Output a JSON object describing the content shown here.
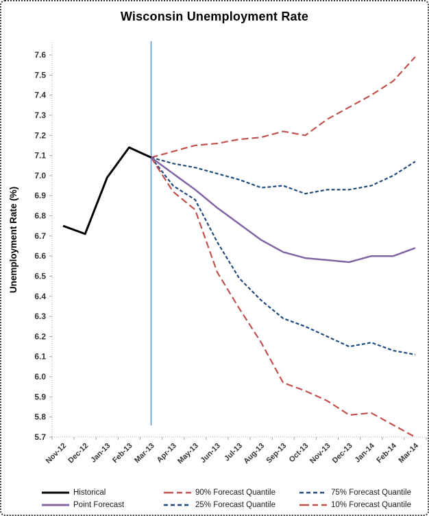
{
  "window": {
    "title": "Wisconsin Unemployment Rate"
  },
  "chart_data": {
    "type": "line",
    "title": "Wisconsin Unemployment Rate",
    "xlabel": "",
    "ylabel": "Unemployment Rate (%)",
    "ylim": [
      5.7,
      7.6
    ],
    "ytick_step": 0.1,
    "grid": false,
    "legend_position": "bottom",
    "categories": [
      "Nov-12",
      "Dec-12",
      "Jan-13",
      "Feb-13",
      "Mar-13",
      "Apr-13",
      "May-13",
      "Jun-13",
      "Jul-13",
      "Aug-13",
      "Sep-13",
      "Oct-13",
      "Nov-13",
      "Dec-13",
      "Jan-14",
      "Feb-14",
      "Mar-14"
    ],
    "forecast_start_line": {
      "category": "Mar-13",
      "color": "#5E93CE"
    },
    "series": [
      {
        "name": "90% Forecast Quantile",
        "color": "#C0504D",
        "style": "long-dash",
        "width": 2.2,
        "values": [
          null,
          null,
          null,
          null,
          7.09,
          7.12,
          7.15,
          7.16,
          7.18,
          7.19,
          7.22,
          7.2,
          7.28,
          7.34,
          7.4,
          7.47,
          7.59
        ]
      },
      {
        "name": "75% Forecast Quantile",
        "color": "#1F497D",
        "style": "dash",
        "width": 2.2,
        "values": [
          null,
          null,
          null,
          null,
          7.09,
          7.06,
          7.04,
          7.01,
          6.98,
          6.94,
          6.95,
          6.91,
          6.93,
          6.93,
          6.95,
          7.0,
          7.07
        ]
      },
      {
        "name": "25% Forecast Quantile",
        "color": "#1F497D",
        "style": "dash",
        "width": 2.2,
        "values": [
          null,
          null,
          null,
          null,
          7.09,
          6.95,
          6.88,
          6.67,
          6.49,
          6.38,
          6.29,
          6.25,
          6.2,
          6.15,
          6.17,
          6.13,
          6.11
        ]
      },
      {
        "name": "10% Forecast Quantile",
        "color": "#C0504D",
        "style": "long-dash",
        "width": 2.2,
        "values": [
          null,
          null,
          null,
          null,
          7.09,
          6.92,
          6.83,
          6.52,
          6.34,
          6.17,
          5.97,
          5.93,
          5.88,
          5.81,
          5.82,
          5.76,
          5.7
        ]
      },
      {
        "name": "Point Forecast",
        "color": "#8064A2",
        "style": "solid",
        "width": 2.5,
        "values": [
          null,
          null,
          null,
          null,
          7.09,
          7.01,
          6.93,
          6.84,
          6.76,
          6.68,
          6.62,
          6.59,
          6.58,
          6.57,
          6.6,
          6.6,
          6.64
        ]
      },
      {
        "name": "Historical",
        "color": "#000000",
        "style": "solid",
        "width": 3,
        "values": [
          6.75,
          6.71,
          6.99,
          7.14,
          7.09,
          null,
          null,
          null,
          null,
          null,
          null,
          null,
          null,
          null,
          null,
          null,
          null
        ]
      }
    ],
    "legend_rows": [
      [
        "Historical",
        "90% Forecast Quantile",
        "75% Forecast Quantile"
      ],
      [
        "Point Forecast",
        "25% Forecast Quantile",
        "10% Forecast Quantile"
      ]
    ]
  }
}
